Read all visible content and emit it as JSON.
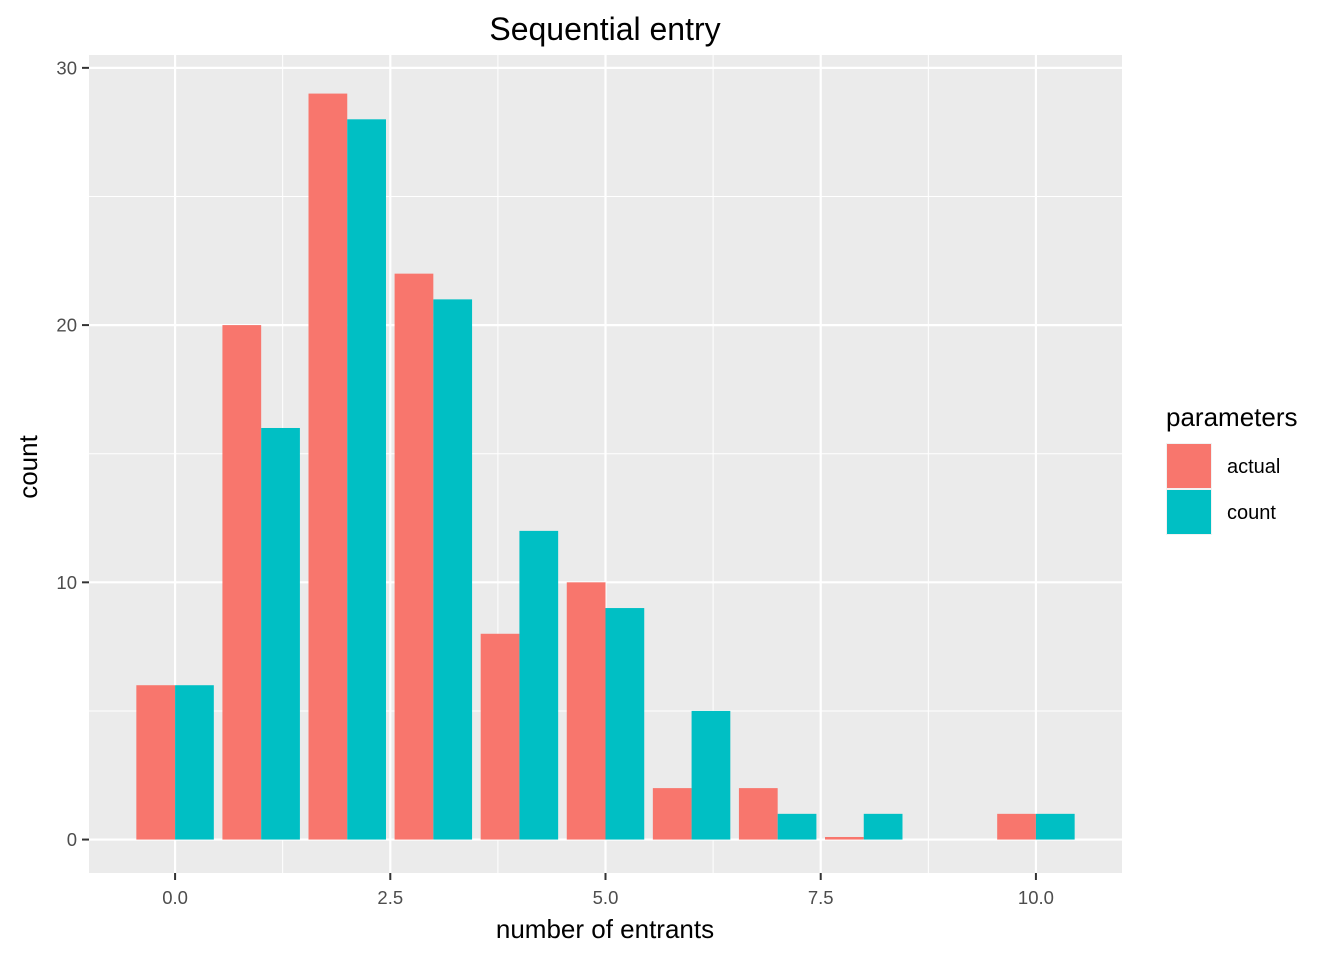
{
  "chart_data": {
    "type": "bar",
    "title": "Sequential entry",
    "xlabel": "number of entrants",
    "ylabel": "count",
    "xlim": [
      -1.0,
      11.0
    ],
    "ylim": [
      -1.3,
      30.5
    ],
    "x_ticks": [
      0.0,
      2.5,
      5.0,
      7.5,
      10.0
    ],
    "x_tick_labels": [
      "0.0",
      "2.5",
      "5.0",
      "7.5",
      "10.0"
    ],
    "y_ticks": [
      0,
      10,
      20,
      30
    ],
    "y_tick_labels": [
      "0",
      "10",
      "20",
      "30"
    ],
    "grid": true,
    "legend": {
      "title": "parameters",
      "position": "right"
    },
    "categories": [
      0,
      1,
      2,
      3,
      4,
      5,
      6,
      7,
      8,
      9,
      10
    ],
    "series": [
      {
        "name": "actual",
        "color": "#F8766D",
        "values": [
          6,
          20,
          29,
          22,
          8,
          10,
          2,
          2,
          0.1,
          0,
          1
        ]
      },
      {
        "name": "count",
        "color": "#00BFC4",
        "values": [
          6,
          16,
          28,
          21,
          12,
          9,
          5,
          1,
          1,
          0,
          1
        ]
      }
    ]
  }
}
